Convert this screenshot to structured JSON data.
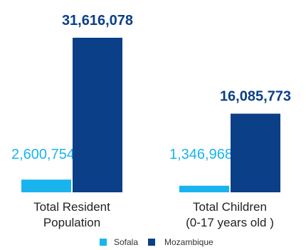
{
  "chart_data": {
    "type": "bar",
    "title": "",
    "xlabel": "",
    "ylabel": "",
    "ylim": [
      0,
      31616078
    ],
    "grid": false,
    "legend_position": "bottom-center",
    "categories": [
      [
        "Total Resident",
        "Population"
      ],
      [
        "Total Children",
        "(0-17 years old )"
      ]
    ],
    "series": [
      {
        "name": "Sofala",
        "color": "#19B4EE",
        "values": [
          2600754,
          1346968
        ],
        "labels": [
          "2,600,754",
          "1,346,968"
        ]
      },
      {
        "name": "Mozambique",
        "color": "#0B3F87",
        "values": [
          31616078,
          16085773
        ],
        "labels": [
          "31,616,078",
          "16,085,773"
        ]
      }
    ]
  }
}
